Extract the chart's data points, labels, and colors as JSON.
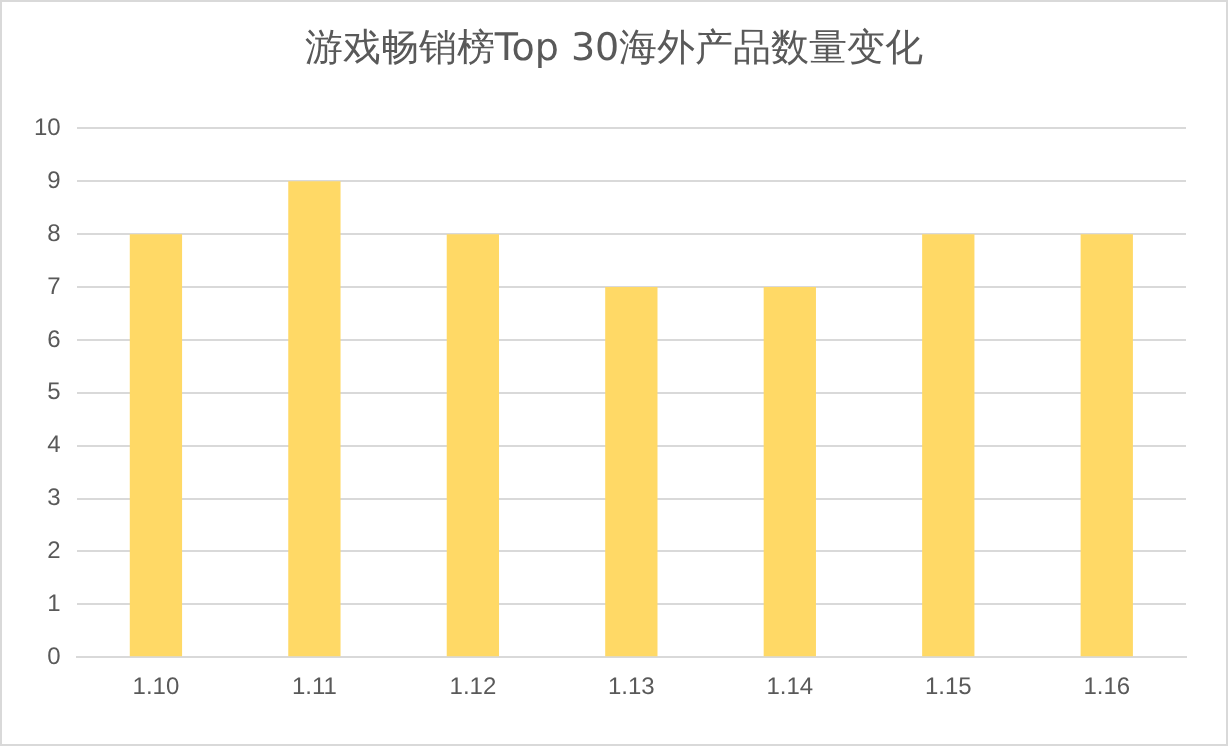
{
  "chart_data": {
    "type": "bar",
    "title": "游戏畅销榜Top 30海外产品数量变化",
    "categories": [
      "1.10",
      "1.11",
      "1.12",
      "1.13",
      "1.14",
      "1.15",
      "1.16"
    ],
    "values": [
      8,
      9,
      8,
      7,
      7,
      8,
      8
    ],
    "color": "#ffd966",
    "ylim": [
      0,
      10
    ],
    "yticks": [
      0,
      1,
      2,
      3,
      4,
      5,
      6,
      7,
      8,
      9,
      10
    ],
    "grid": "y",
    "legend": false
  }
}
